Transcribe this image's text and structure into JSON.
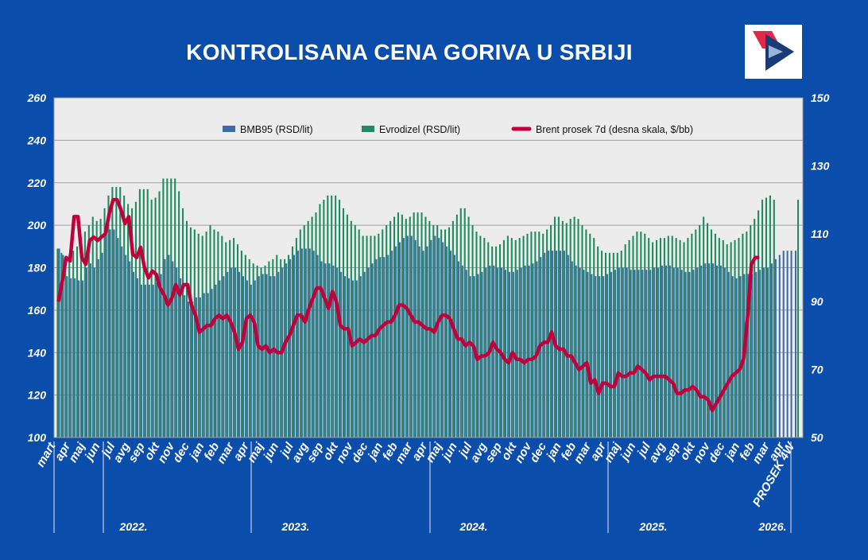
{
  "title": "KONTROLISANA CENA GORIVA U SRBIJI",
  "colors": {
    "background": "#0b4dab",
    "plot_background": "#ececec",
    "bmb95": "#3e6aa8",
    "evrodizel": "#1f8a63",
    "brent": "#c0003c"
  },
  "logo": {
    "name": "company-logo"
  },
  "chart_data": {
    "type": "bar",
    "title": "KONTROLISANA CENA GORIVA U SRBIJI",
    "ylim": [
      100,
      260
    ],
    "y2lim": [
      50,
      150
    ],
    "yticks": [
      100,
      120,
      140,
      160,
      180,
      200,
      220,
      240,
      260
    ],
    "y2ticks": [
      50,
      70,
      90,
      110,
      130,
      150
    ],
    "grid": true,
    "legend_position": "top",
    "legend": [
      {
        "label": "BMB95 (RSD/lit)",
        "kind": "bar",
        "color": "#3e6aa8"
      },
      {
        "label": "Evrodizel (RSD/lit)",
        "kind": "bar",
        "color": "#1f8a63"
      },
      {
        "label": "Brent prosek  7d (desna skala, $/bb)",
        "kind": "line",
        "color": "#c0003c"
      }
    ],
    "month_labels": [
      "mart",
      "apr",
      "maj",
      "jun",
      "jul",
      "avg",
      "sep",
      "okt",
      "nov",
      "dec",
      "jan",
      "feb",
      "mar",
      "apr",
      "maj",
      "jun",
      "jul",
      "avg",
      "sep",
      "okt",
      "nov",
      "dec",
      "jan",
      "feb",
      "mar",
      "apr",
      "maj",
      "jun",
      "jul",
      "avg",
      "sep",
      "okt",
      "nov",
      "dec",
      "jan",
      "feb",
      "mar",
      "apr",
      "maj",
      "jun",
      "jul",
      "avg",
      "sep",
      "okt",
      "nov",
      "dec",
      "jan",
      "feb",
      "mar",
      "apr",
      "PROSEK 4W"
    ],
    "year_labels": [
      "2022.",
      "2023.",
      "2024.",
      "2025.",
      "2026."
    ],
    "series": [
      {
        "name": "BMB95 (RSD/lit)",
        "axis": "left",
        "values": [
          189,
          186,
          176,
          175,
          175,
          174,
          174,
          180,
          182,
          180,
          184,
          187,
          196,
          198,
          198,
          194,
          190,
          186,
          183,
          178,
          175,
          172,
          172,
          172,
          172,
          173,
          177,
          184,
          186,
          183,
          180,
          175,
          167,
          164,
          164,
          166,
          166,
          168,
          168,
          170,
          172,
          174,
          176,
          178,
          180,
          180,
          178,
          176,
          174,
          172,
          174,
          176,
          177,
          177,
          176,
          176,
          178,
          180,
          182,
          184,
          186,
          188,
          189,
          189,
          189,
          188,
          186,
          183,
          182,
          182,
          181,
          180,
          178,
          176,
          175,
          174,
          174,
          176,
          178,
          180,
          182,
          184,
          185,
          185,
          186,
          188,
          190,
          192,
          194,
          195,
          195,
          193,
          190,
          188,
          190,
          193,
          195,
          194,
          192,
          190,
          188,
          186,
          183,
          181,
          179,
          176,
          176,
          177,
          178,
          180,
          181,
          181,
          180,
          180,
          179,
          178,
          178,
          179,
          180,
          181,
          181,
          182,
          183,
          185,
          187,
          188,
          188,
          188,
          188,
          188,
          186,
          183,
          181,
          180,
          179,
          178,
          177,
          176,
          176,
          176,
          177,
          178,
          179,
          180,
          180,
          180,
          179,
          179,
          179,
          179,
          179,
          179,
          180,
          180,
          181,
          181,
          181,
          180,
          180,
          179,
          178,
          178,
          179,
          180,
          181,
          182,
          182,
          182,
          181,
          181,
          180,
          178,
          176,
          175,
          176,
          177,
          177,
          177,
          178,
          179,
          180,
          180,
          182,
          184,
          186,
          188,
          188,
          188
        ]
      },
      {
        "name": "Evrodizel (RSD/lit)",
        "axis": "left",
        "values": [
          189,
          187,
          183,
          186,
          188,
          190,
          193,
          197,
          200,
          204,
          202,
          203,
          208,
          214,
          218,
          218,
          218,
          214,
          210,
          208,
          211,
          217,
          217,
          217,
          212,
          213,
          216,
          222,
          222,
          222,
          222,
          216,
          208,
          202,
          199,
          198,
          196,
          195,
          197,
          200,
          198,
          197,
          195,
          192,
          193,
          194,
          191,
          188,
          186,
          184,
          182,
          181,
          180,
          181,
          183,
          184,
          186,
          184,
          184,
          186,
          190,
          194,
          198,
          200,
          202,
          204,
          206,
          210,
          212,
          214,
          214,
          214,
          212,
          208,
          205,
          202,
          200,
          198,
          195,
          195,
          195,
          195,
          196,
          198,
          200,
          202,
          204,
          206,
          205,
          203,
          204,
          206,
          206,
          206,
          204,
          202,
          200,
          200,
          198,
          198,
          199,
          202,
          205,
          208,
          208,
          204,
          200,
          197,
          195,
          194,
          192,
          190,
          190,
          191,
          193,
          195,
          194,
          193,
          194,
          195,
          196,
          197,
          197,
          197,
          196,
          198,
          200,
          204,
          204,
          202,
          201,
          203,
          204,
          203,
          200,
          198,
          196,
          194,
          190,
          188,
          187,
          187,
          187,
          187,
          188,
          191,
          193,
          195,
          197,
          197,
          196,
          194,
          192,
          193,
          194,
          194,
          195,
          195,
          194,
          193,
          192,
          194,
          196,
          198,
          200,
          204,
          201,
          198,
          196,
          194,
          193,
          191,
          192,
          193,
          194,
          196,
          197,
          200,
          203,
          207,
          212,
          213,
          214,
          212
        ]
      },
      {
        "name": "Brent prosek  7d (desna skala, $/bb)",
        "axis": "right",
        "values": [
          90,
          96,
          103,
          102,
          115,
          115,
          103,
          101,
          108,
          109,
          108,
          109,
          110,
          116,
          120,
          120,
          117,
          113,
          115,
          104,
          103,
          106,
          100,
          97,
          99,
          98,
          94,
          92,
          89,
          91,
          95,
          92,
          95,
          95,
          89,
          86,
          81,
          82,
          83,
          83,
          85,
          86,
          85,
          86,
          84,
          81,
          76,
          78,
          85,
          86,
          84,
          77,
          76,
          77,
          75,
          76,
          75,
          75,
          78,
          80,
          83,
          86,
          86,
          84,
          88,
          91,
          94,
          94,
          91,
          88,
          93,
          90,
          83,
          82,
          82,
          77,
          78,
          79,
          78,
          79,
          80,
          80,
          82,
          83,
          84,
          84,
          86,
          89,
          89,
          88,
          86,
          84,
          84,
          83,
          82,
          82,
          81,
          84,
          86,
          86,
          85,
          82,
          79,
          79,
          77,
          78,
          77,
          73,
          74,
          74,
          75,
          78,
          76,
          75,
          73,
          72,
          75,
          73,
          73,
          72,
          73,
          73,
          74,
          77,
          78,
          78,
          81,
          77,
          76,
          76,
          74,
          74,
          72,
          70,
          71,
          72,
          66,
          67,
          63,
          66,
          66,
          65,
          65,
          69,
          68,
          68,
          69,
          69,
          71,
          70,
          69,
          67,
          68,
          68,
          68,
          68,
          67,
          66,
          63,
          63,
          64,
          64,
          65,
          64,
          62,
          62,
          61,
          58,
          60,
          62,
          64,
          66,
          68,
          69,
          70,
          73,
          85,
          101,
          103,
          103
        ]
      }
    ],
    "prosek_4w": {
      "bmb95": 188,
      "evrodizel": 212
    }
  }
}
